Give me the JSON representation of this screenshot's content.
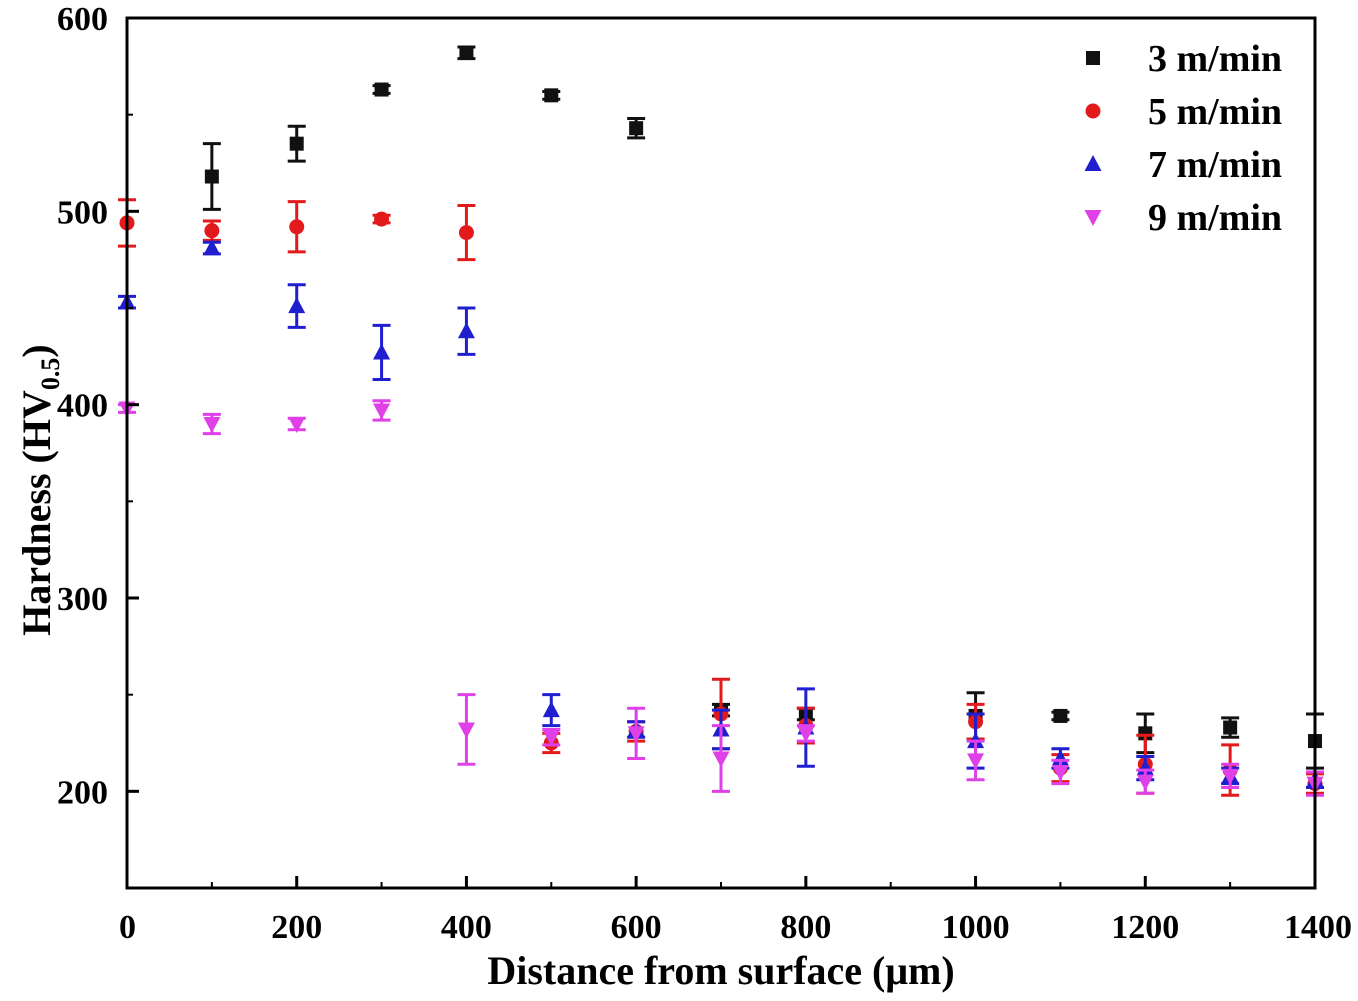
{
  "chart_data": {
    "type": "scatter",
    "title": "",
    "xlabel": "Distance from surface (μm)",
    "ylabel": {
      "main": "Hardness (HV",
      "subscript": "0.5",
      "close": ")"
    },
    "xlim": [
      0,
      1400
    ],
    "ylim": [
      150,
      600
    ],
    "xticks": [
      "0",
      "200",
      "400",
      "600",
      "800",
      "1000",
      "1200",
      "1400"
    ],
    "yticks": [
      "200",
      "300",
      "400",
      "500",
      "600"
    ],
    "legend_position": "top-right",
    "series": [
      {
        "name": "3 m/min",
        "color": "#111111",
        "marker": "square",
        "points": [
          {
            "x": 100,
            "y": 518,
            "err": 17
          },
          {
            "x": 200,
            "y": 535,
            "err": 9
          },
          {
            "x": 300,
            "y": 563,
            "err": 2
          },
          {
            "x": 400,
            "y": 582,
            "err": 3
          },
          {
            "x": 500,
            "y": 560,
            "err": 2
          },
          {
            "x": 600,
            "y": 543,
            "err": 5
          },
          {
            "x": 700,
            "y": 242,
            "err": 3
          },
          {
            "x": 800,
            "y": 240,
            "err": 3
          },
          {
            "x": 1000,
            "y": 239,
            "err": 12
          },
          {
            "x": 1100,
            "y": 239,
            "err": 2
          },
          {
            "x": 1200,
            "y": 230,
            "err": 10
          },
          {
            "x": 1300,
            "y": 233,
            "err": 5
          },
          {
            "x": 1400,
            "y": 226,
            "err": 14
          }
        ]
      },
      {
        "name": "5 m/min",
        "color": "#e31a1c",
        "marker": "circle",
        "points": [
          {
            "x": 0,
            "y": 494,
            "err": 12
          },
          {
            "x": 100,
            "y": 490,
            "err": 5
          },
          {
            "x": 200,
            "y": 492,
            "err": 13
          },
          {
            "x": 300,
            "y": 496,
            "err": 2
          },
          {
            "x": 400,
            "y": 489,
            "err": 14
          },
          {
            "x": 500,
            "y": 225,
            "err": 5
          },
          {
            "x": 600,
            "y": 231,
            "err": 5
          },
          {
            "x": 700,
            "y": 240,
            "err": 18
          },
          {
            "x": 800,
            "y": 234,
            "err": 9
          },
          {
            "x": 1000,
            "y": 236,
            "err": 9
          },
          {
            "x": 1100,
            "y": 212,
            "err": 7
          },
          {
            "x": 1200,
            "y": 214,
            "err": 15
          },
          {
            "x": 1300,
            "y": 211,
            "err": 13
          },
          {
            "x": 1400,
            "y": 204,
            "err": 5
          }
        ]
      },
      {
        "name": "7 m/min",
        "color": "#1f1fd0",
        "marker": "triangle-up",
        "points": [
          {
            "x": 0,
            "y": 453,
            "err": 3
          },
          {
            "x": 100,
            "y": 481,
            "err": 3
          },
          {
            "x": 200,
            "y": 451,
            "err": 11
          },
          {
            "x": 300,
            "y": 427,
            "err": 14
          },
          {
            "x": 400,
            "y": 438,
            "err": 12
          },
          {
            "x": 500,
            "y": 242,
            "err": 8
          },
          {
            "x": 600,
            "y": 232,
            "err": 4
          },
          {
            "x": 700,
            "y": 232,
            "err": 10
          },
          {
            "x": 800,
            "y": 233,
            "err": 20
          },
          {
            "x": 1000,
            "y": 226,
            "err": 14
          },
          {
            "x": 1100,
            "y": 217,
            "err": 5
          },
          {
            "x": 1200,
            "y": 212,
            "err": 6
          },
          {
            "x": 1300,
            "y": 208,
            "err": 4
          },
          {
            "x": 1400,
            "y": 206,
            "err": 4
          }
        ]
      },
      {
        "name": "9 m/min",
        "color": "#e040e8",
        "marker": "triangle-down",
        "points": [
          {
            "x": 0,
            "y": 398,
            "err": 2
          },
          {
            "x": 100,
            "y": 390,
            "err": 5
          },
          {
            "x": 200,
            "y": 390,
            "err": 3
          },
          {
            "x": 300,
            "y": 397,
            "err": 5
          },
          {
            "x": 400,
            "y": 232,
            "err": 18
          },
          {
            "x": 500,
            "y": 228,
            "err": 4
          },
          {
            "x": 600,
            "y": 230,
            "err": 13
          },
          {
            "x": 700,
            "y": 217,
            "err": 17
          },
          {
            "x": 800,
            "y": 230,
            "err": 4
          },
          {
            "x": 1000,
            "y": 216,
            "err": 10
          },
          {
            "x": 1100,
            "y": 210,
            "err": 6
          },
          {
            "x": 1200,
            "y": 205,
            "err": 6
          },
          {
            "x": 1300,
            "y": 208,
            "err": 6
          },
          {
            "x": 1400,
            "y": 204,
            "err": 6
          }
        ]
      }
    ]
  }
}
